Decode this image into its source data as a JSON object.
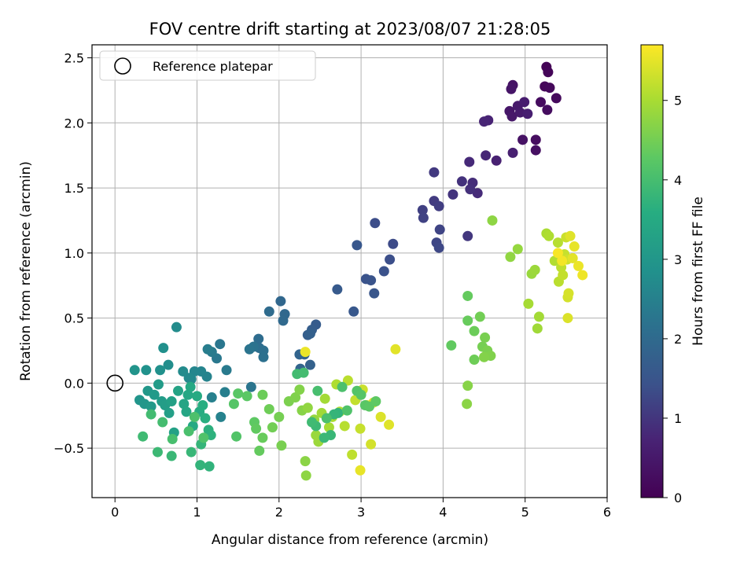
{
  "chart_data": {
    "type": "scatter",
    "title": "FOV centre drift starting at 2023/08/07 21:28:05",
    "xlabel": "Angular distance from reference (arcmin)",
    "ylabel": "Rotation from reference (arcmin)",
    "xlim": [
      -0.28,
      6.0
    ],
    "ylim": [
      -0.88,
      2.6
    ],
    "x_ticks": [
      0,
      1,
      2,
      3,
      4,
      5,
      6
    ],
    "x_tick_labels": [
      "0",
      "1",
      "2",
      "3",
      "4",
      "5",
      "6"
    ],
    "y_ticks": [
      -0.5,
      0.0,
      0.5,
      1.0,
      1.5,
      2.0,
      2.5
    ],
    "y_tick_labels": [
      "−0.5",
      "0.0",
      "0.5",
      "1.0",
      "1.5",
      "2.0",
      "2.5"
    ],
    "grid": true,
    "legend": {
      "placement": "upper left",
      "entries": [
        {
          "label": "Reference platepar",
          "marker": "open-circle"
        }
      ]
    },
    "reference_point": {
      "x": 0.0,
      "y": 0.0
    },
    "colorbar": {
      "label": "Hours from first FF file",
      "colormap": "viridis",
      "range": [
        0,
        5.7
      ],
      "ticks": [
        0,
        1,
        2,
        3,
        4,
        5
      ],
      "tick_labels": [
        "0",
        "1",
        "2",
        "3",
        "4",
        "5"
      ]
    },
    "points": [
      [
        5.26,
        2.43,
        0.05
      ],
      [
        5.28,
        2.39,
        0.08
      ],
      [
        5.24,
        2.28,
        0.12
      ],
      [
        5.3,
        2.27,
        0.15
      ],
      [
        5.38,
        2.19,
        0.18
      ],
      [
        5.19,
        2.16,
        0.22
      ],
      [
        5.27,
        2.1,
        0.25
      ],
      [
        5.13,
        1.87,
        0.28
      ],
      [
        5.13,
        1.79,
        0.32
      ],
      [
        4.97,
        1.87,
        0.35
      ],
      [
        4.85,
        2.29,
        0.38
      ],
      [
        4.83,
        2.26,
        0.42
      ],
      [
        4.81,
        2.09,
        0.45
      ],
      [
        4.84,
        2.05,
        0.48
      ],
      [
        4.91,
        2.13,
        0.52
      ],
      [
        4.94,
        2.08,
        0.55
      ],
      [
        4.99,
        2.16,
        0.58
      ],
      [
        5.03,
        2.07,
        0.62
      ],
      [
        4.85,
        1.77,
        0.65
      ],
      [
        4.65,
        1.71,
        0.68
      ],
      [
        4.55,
        2.02,
        0.72
      ],
      [
        4.5,
        2.01,
        0.75
      ],
      [
        4.52,
        1.75,
        0.78
      ],
      [
        4.32,
        1.7,
        0.82
      ],
      [
        4.42,
        1.46,
        0.85
      ],
      [
        4.36,
        1.54,
        0.88
      ],
      [
        4.33,
        1.49,
        0.92
      ],
      [
        4.23,
        1.55,
        0.95
      ],
      [
        4.12,
        1.45,
        0.98
      ],
      [
        4.3,
        1.13,
        1.02
      ],
      [
        3.89,
        1.62,
        1.05
      ],
      [
        3.89,
        1.4,
        1.08
      ],
      [
        3.95,
        1.36,
        1.12
      ],
      [
        3.75,
        1.33,
        1.15
      ],
      [
        3.76,
        1.27,
        1.18
      ],
      [
        3.96,
        1.18,
        1.22
      ],
      [
        3.92,
        1.08,
        1.25
      ],
      [
        3.95,
        1.04,
        1.28
      ],
      [
        3.39,
        1.07,
        1.32
      ],
      [
        3.17,
        1.23,
        1.35
      ],
      [
        3.35,
        0.95,
        1.38
      ],
      [
        3.28,
        0.86,
        1.42
      ],
      [
        3.06,
        0.8,
        1.45
      ],
      [
        3.12,
        0.79,
        1.48
      ],
      [
        3.16,
        0.69,
        1.52
      ],
      [
        2.95,
        1.06,
        1.55
      ],
      [
        2.91,
        0.55,
        1.58
      ],
      [
        2.71,
        0.72,
        1.62
      ],
      [
        2.45,
        0.45,
        1.65
      ],
      [
        2.4,
        0.41,
        1.68
      ],
      [
        2.35,
        0.37,
        1.72
      ],
      [
        2.38,
        0.38,
        1.75
      ],
      [
        2.38,
        0.14,
        1.78
      ],
      [
        2.31,
        0.22,
        1.82
      ],
      [
        2.25,
        0.22,
        1.85
      ],
      [
        2.26,
        0.11,
        1.88
      ],
      [
        2.02,
        0.63,
        1.92
      ],
      [
        2.07,
        0.53,
        1.95
      ],
      [
        2.05,
        0.48,
        1.98
      ],
      [
        1.88,
        0.55,
        2.02
      ],
      [
        1.75,
        0.34,
        2.05
      ],
      [
        1.76,
        0.27,
        2.08
      ],
      [
        1.81,
        0.25,
        2.12
      ],
      [
        1.81,
        0.2,
        2.15
      ],
      [
        1.69,
        0.28,
        2.18
      ],
      [
        1.64,
        0.26,
        2.22
      ],
      [
        1.66,
        -0.03,
        2.25
      ],
      [
        1.28,
        0.3,
        2.28
      ],
      [
        1.24,
        0.19,
        2.32
      ],
      [
        1.36,
        0.1,
        2.35
      ],
      [
        1.18,
        0.24,
        2.38
      ],
      [
        1.13,
        0.26,
        2.42
      ],
      [
        1.34,
        -0.07,
        2.45
      ],
      [
        1.18,
        -0.11,
        2.48
      ],
      [
        1.29,
        -0.26,
        2.52
      ],
      [
        1.12,
        0.05,
        2.55
      ],
      [
        1.05,
        0.09,
        2.58
      ],
      [
        0.97,
        0.09,
        2.62
      ],
      [
        0.93,
        0.03,
        2.65
      ],
      [
        0.9,
        0.04,
        2.68
      ],
      [
        0.83,
        0.09,
        2.72
      ],
      [
        0.75,
        0.43,
        2.75
      ],
      [
        0.65,
        0.14,
        2.78
      ],
      [
        0.59,
        0.27,
        2.82
      ],
      [
        0.55,
        0.1,
        2.85
      ],
      [
        0.38,
        0.1,
        2.88
      ],
      [
        0.24,
        0.1,
        2.92
      ],
      [
        0.3,
        -0.13,
        2.95
      ],
      [
        0.36,
        -0.16,
        2.98
      ],
      [
        0.4,
        -0.06,
        3.02
      ],
      [
        0.44,
        -0.18,
        3.05
      ],
      [
        0.48,
        -0.09,
        3.08
      ],
      [
        0.53,
        -0.01,
        3.12
      ],
      [
        0.57,
        -0.14,
        3.15
      ],
      [
        0.61,
        -0.17,
        3.18
      ],
      [
        0.66,
        -0.23,
        3.22
      ],
      [
        0.69,
        -0.14,
        3.25
      ],
      [
        0.72,
        -0.38,
        3.28
      ],
      [
        0.77,
        -0.06,
        3.32
      ],
      [
        0.84,
        -0.16,
        3.35
      ],
      [
        0.87,
        -0.22,
        3.38
      ],
      [
        0.89,
        -0.09,
        3.42
      ],
      [
        0.92,
        -0.03,
        3.45
      ],
      [
        0.95,
        -0.33,
        3.48
      ],
      [
        1.0,
        -0.1,
        3.52
      ],
      [
        1.03,
        -0.22,
        3.55
      ],
      [
        1.07,
        -0.17,
        3.58
      ],
      [
        1.1,
        -0.27,
        3.62
      ],
      [
        1.14,
        -0.36,
        3.65
      ],
      [
        1.17,
        -0.4,
        3.68
      ],
      [
        1.15,
        -0.64,
        3.72
      ],
      [
        1.04,
        -0.63,
        3.75
      ],
      [
        1.05,
        -0.47,
        3.78
      ],
      [
        0.93,
        -0.53,
        3.82
      ],
      [
        0.69,
        -0.56,
        3.85
      ],
      [
        0.52,
        -0.53,
        3.88
      ],
      [
        0.34,
        -0.41,
        3.92
      ],
      [
        0.44,
        -0.24,
        3.95
      ],
      [
        0.58,
        -0.3,
        3.98
      ],
      [
        0.7,
        -0.43,
        4.02
      ],
      [
        0.9,
        -0.37,
        4.05
      ],
      [
        0.97,
        -0.26,
        4.08
      ],
      [
        1.08,
        -0.42,
        4.12
      ],
      [
        1.48,
        -0.41,
        4.15
      ],
      [
        1.45,
        -0.16,
        4.18
      ],
      [
        1.5,
        -0.08,
        4.22
      ],
      [
        1.61,
        -0.1,
        4.25
      ],
      [
        1.7,
        -0.3,
        4.28
      ],
      [
        1.72,
        -0.35,
        4.32
      ],
      [
        1.76,
        -0.52,
        4.35
      ],
      [
        1.8,
        -0.42,
        4.38
      ],
      [
        1.8,
        -0.09,
        4.42
      ],
      [
        1.88,
        -0.2,
        4.45
      ],
      [
        1.92,
        -0.34,
        4.48
      ],
      [
        2.0,
        -0.26,
        4.52
      ],
      [
        2.03,
        -0.48,
        4.55
      ],
      [
        2.12,
        -0.14,
        4.58
      ],
      [
        2.2,
        -0.11,
        4.62
      ],
      [
        2.25,
        -0.05,
        4.65
      ],
      [
        2.28,
        -0.21,
        4.68
      ],
      [
        2.32,
        -0.6,
        4.72
      ],
      [
        2.33,
        -0.71,
        4.75
      ],
      [
        2.35,
        -0.19,
        4.78
      ],
      [
        2.43,
        -0.28,
        4.82
      ],
      [
        2.45,
        -0.4,
        4.85
      ],
      [
        2.48,
        -0.45,
        4.88
      ],
      [
        2.52,
        -0.23,
        4.92
      ],
      [
        2.56,
        -0.12,
        4.95
      ],
      [
        2.61,
        -0.34,
        4.98
      ],
      [
        2.65,
        -0.26,
        5.02
      ],
      [
        2.7,
        -0.01,
        5.05
      ],
      [
        2.74,
        -0.22,
        5.08
      ],
      [
        2.8,
        -0.33,
        5.12
      ],
      [
        2.84,
        0.02,
        5.15
      ],
      [
        2.89,
        -0.55,
        5.18
      ],
      [
        2.93,
        -0.13,
        5.22
      ],
      [
        2.99,
        -0.35,
        5.25
      ],
      [
        3.02,
        -0.05,
        5.28
      ],
      [
        3.07,
        -0.17,
        5.32
      ],
      [
        3.12,
        -0.47,
        5.35
      ],
      [
        3.15,
        -0.15,
        5.38
      ],
      [
        3.24,
        -0.26,
        5.42
      ],
      [
        3.34,
        -0.32,
        5.45
      ],
      [
        3.42,
        0.26,
        5.48
      ],
      [
        2.99,
        -0.67,
        5.52
      ],
      [
        2.32,
        0.24,
        5.55
      ]
    ],
    "points_green_to_yellow": [
      [
        2.72,
        -0.23,
        3.75
      ],
      [
        2.67,
        -0.24,
        3.78
      ],
      [
        2.63,
        -0.4,
        3.82
      ],
      [
        2.55,
        -0.42,
        3.85
      ],
      [
        2.45,
        -0.33,
        3.88
      ],
      [
        2.4,
        -0.3,
        3.92
      ],
      [
        2.22,
        0.07,
        3.95
      ],
      [
        2.3,
        0.08,
        3.98
      ],
      [
        2.47,
        -0.06,
        4.02
      ],
      [
        2.58,
        -0.27,
        4.05
      ],
      [
        2.77,
        -0.03,
        4.08
      ],
      [
        2.83,
        -0.21,
        4.12
      ],
      [
        2.95,
        -0.06,
        4.15
      ],
      [
        3.0,
        -0.09,
        4.18
      ],
      [
        3.05,
        -0.17,
        4.22
      ],
      [
        3.1,
        -0.18,
        4.25
      ],
      [
        3.18,
        -0.14,
        4.28
      ],
      [
        4.1,
        0.29,
        4.32
      ],
      [
        4.3,
        0.67,
        4.35
      ],
      [
        4.3,
        0.48,
        4.38
      ],
      [
        4.38,
        0.4,
        4.42
      ],
      [
        4.38,
        0.18,
        4.45
      ],
      [
        4.45,
        0.51,
        4.48
      ],
      [
        4.48,
        0.28,
        4.52
      ],
      [
        4.51,
        0.35,
        4.55
      ],
      [
        4.54,
        0.25,
        4.58
      ],
      [
        4.58,
        0.21,
        4.62
      ],
      [
        4.5,
        0.2,
        4.65
      ],
      [
        4.3,
        -0.02,
        4.68
      ],
      [
        4.29,
        -0.16,
        4.72
      ],
      [
        4.6,
        1.25,
        4.75
      ],
      [
        4.82,
        0.97,
        4.78
      ],
      [
        4.91,
        1.03,
        4.82
      ],
      [
        5.08,
        0.84,
        4.85
      ],
      [
        5.12,
        0.87,
        4.88
      ],
      [
        5.15,
        0.42,
        4.92
      ],
      [
        5.17,
        0.51,
        4.95
      ],
      [
        5.04,
        0.61,
        4.98
      ],
      [
        5.26,
        1.15,
        5.02
      ],
      [
        5.29,
        1.13,
        5.05
      ],
      [
        5.36,
        0.94,
        5.08
      ],
      [
        5.4,
        1.08,
        5.12
      ],
      [
        5.41,
        0.78,
        5.15
      ],
      [
        5.44,
        0.89,
        5.18
      ],
      [
        5.46,
        0.83,
        5.22
      ],
      [
        5.48,
        0.99,
        5.25
      ],
      [
        5.5,
        1.12,
        5.28
      ],
      [
        5.51,
        0.95,
        5.32
      ],
      [
        5.52,
        0.66,
        5.35
      ],
      [
        5.53,
        0.69,
        5.38
      ],
      [
        5.52,
        0.5,
        5.42
      ],
      [
        5.55,
        1.13,
        5.45
      ],
      [
        5.58,
        0.96,
        5.48
      ],
      [
        5.6,
        1.05,
        5.52
      ],
      [
        5.65,
        0.9,
        5.55
      ],
      [
        5.7,
        0.83,
        5.58
      ],
      [
        5.45,
        0.94,
        5.62
      ],
      [
        5.4,
        1.0,
        5.65
      ]
    ]
  }
}
